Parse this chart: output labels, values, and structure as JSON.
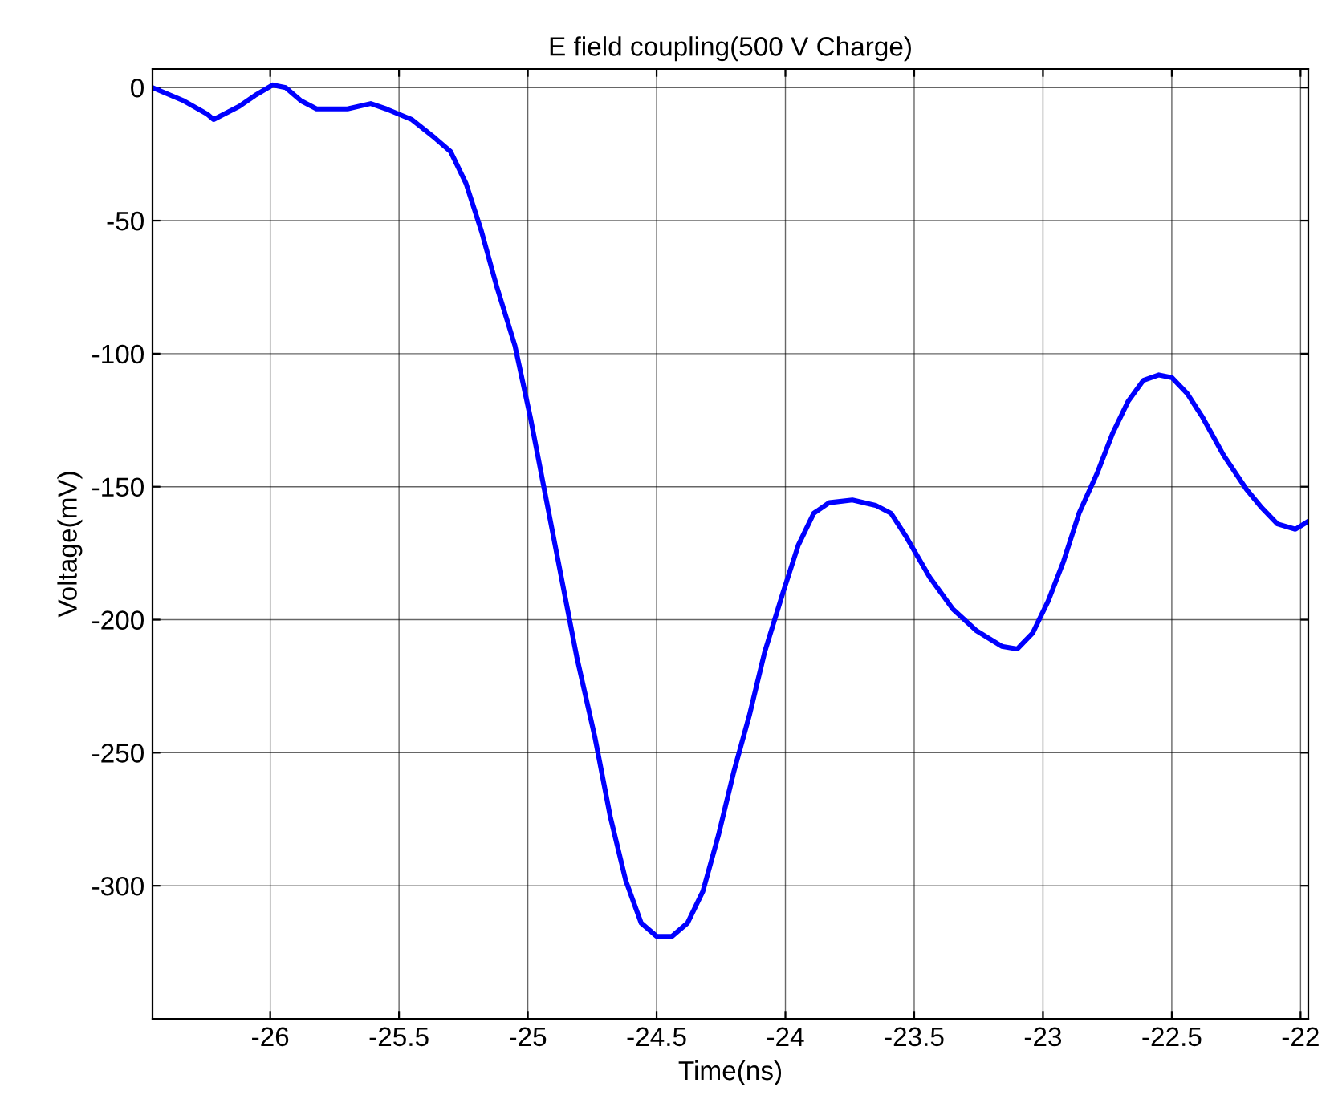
{
  "chart_data": {
    "type": "line",
    "title": "E field coupling(500 V Charge)",
    "xlabel": "Time(ns)",
    "ylabel": "Voltage(mV)",
    "x": [
      -26.457,
      -26.335,
      -26.244,
      -26.22,
      -26.12,
      -26.06,
      -25.99,
      -25.94,
      -25.88,
      -25.82,
      -25.7,
      -25.61,
      -25.55,
      -25.45,
      -25.36,
      -25.3,
      -25.24,
      -25.18,
      -25.12,
      -25.05,
      -24.99,
      -24.93,
      -24.87,
      -24.81,
      -24.74,
      -24.68,
      -24.62,
      -24.56,
      -24.5,
      -24.44,
      -24.38,
      -24.32,
      -24.26,
      -24.2,
      -24.14,
      -24.08,
      -24.01,
      -23.95,
      -23.89,
      -23.83,
      -23.74,
      -23.65,
      -23.59,
      -23.53,
      -23.44,
      -23.35,
      -23.26,
      -23.16,
      -23.1,
      -23.04,
      -22.98,
      -22.92,
      -22.86,
      -22.79,
      -22.73,
      -22.67,
      -22.61,
      -22.55,
      -22.5,
      -22.44,
      -22.38,
      -22.3,
      -22.21,
      -22.15,
      -22.09,
      -22.02,
      -21.97
    ],
    "series": [
      {
        "color": "#0000ff",
        "values": [
          0,
          -5,
          -10,
          -12,
          -7,
          -3,
          1,
          0,
          -5,
          -8,
          -8,
          -6,
          -8,
          -12,
          -19,
          -24,
          -36,
          -54,
          -75,
          -97,
          -124,
          -154,
          -184,
          -214,
          -244,
          -274,
          -298,
          -314,
          -319,
          -319,
          -314,
          -302,
          -281,
          -257,
          -236,
          -212,
          -190,
          -172,
          -160,
          -156,
          -155,
          -157,
          -160,
          -169,
          -184,
          -196,
          -204,
          -210,
          -211,
          -205,
          -193,
          -178,
          -160,
          -145,
          -130,
          -118,
          -110,
          -108,
          -109,
          -115,
          -124,
          -138,
          -151,
          -158,
          -164,
          -166,
          -163
        ]
      }
    ],
    "xlim": [
      -26.457,
      -21.97
    ],
    "ylim": [
      -350,
      7
    ],
    "xticks": [
      -26,
      -25.5,
      -25,
      -24.5,
      -24,
      -23.5,
      -23,
      -22.5,
      -22
    ],
    "yticks": [
      -300,
      -250,
      -200,
      -150,
      -100,
      -50,
      0
    ],
    "grid": true,
    "marker": "none",
    "line_style": "solid",
    "legend": false
  }
}
